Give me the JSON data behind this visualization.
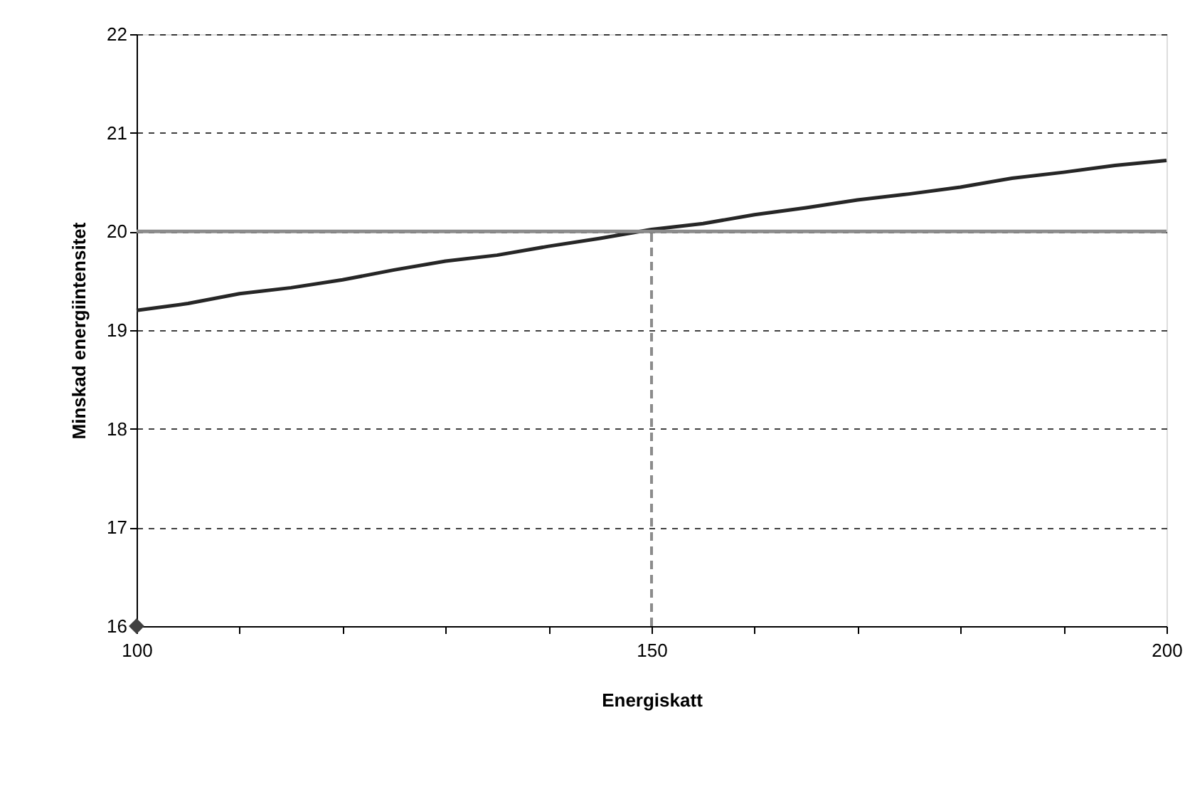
{
  "chart_data": {
    "type": "line",
    "xlabel": "Energiskatt",
    "ylabel": "Minskad energiintensitet",
    "xlim": [
      100,
      200
    ],
    "ylim": [
      16,
      22
    ],
    "xticks": [
      100,
      {
        "value": 110,
        "label": null
      },
      {
        "value": 120,
        "label": null
      },
      {
        "value": 130,
        "label": null
      },
      {
        "value": 140,
        "label": null
      },
      150,
      {
        "value": 160,
        "label": null
      },
      {
        "value": 170,
        "label": null
      },
      {
        "value": 180,
        "label": null
      },
      {
        "value": 190,
        "label": null
      },
      200
    ],
    "yticks": [
      16,
      17,
      18,
      19,
      20,
      21,
      22
    ],
    "grid": "y",
    "series": [
      {
        "color": "#262626",
        "line_style": "solid",
        "marker": "none",
        "x": [
          100,
          105,
          110,
          115,
          120,
          125,
          130,
          135,
          140,
          145,
          150,
          155,
          160,
          165,
          170,
          175,
          180,
          185,
          190,
          195,
          200
        ],
        "values": [
          19.2,
          19.27,
          19.37,
          19.43,
          19.51,
          19.61,
          19.7,
          19.76,
          19.85,
          19.93,
          20.02,
          20.08,
          20.17,
          20.24,
          20.32,
          20.38,
          20.45,
          20.54,
          20.6,
          20.67,
          20.72
        ]
      },
      {
        "type": "line",
        "color": "#8c8c8c",
        "line_style": "dashed",
        "marker": "none",
        "x": [
          150,
          150
        ],
        "values": [
          16,
          20
        ]
      },
      {
        "type": "scatter",
        "color": "#404040",
        "marker": "diamond",
        "x": [
          100
        ],
        "values": [
          16
        ]
      }
    ],
    "ref_lines": [
      {
        "axis": "y",
        "value": 20,
        "color": "#8c8c8c",
        "line_style": "solid"
      }
    ]
  }
}
